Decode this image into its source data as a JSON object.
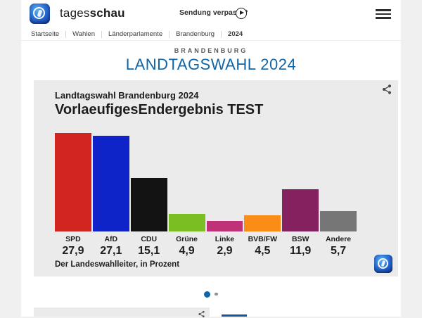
{
  "page": {
    "background": "#f0f0f0"
  },
  "header": {
    "brand": {
      "prefix": "tages",
      "suffix": "schau"
    },
    "broadcast_link": "Sendung verpasst?"
  },
  "breadcrumb": {
    "items": [
      "Startseite",
      "Wahlen",
      "Länderparlamente",
      "Brandenburg",
      "2024"
    ]
  },
  "hero": {
    "kicker": "BRANDENBURG",
    "title": "LANDTAGSWAHL 2024",
    "title_color": "#1065a8"
  },
  "chart_card": {
    "title": "Landtagswahl Brandenburg 2024",
    "subtitle": "VorlaeufigesEndergebnis TEST",
    "source": "Der Landeswahlleiter, in Prozent"
  },
  "chart_data": {
    "type": "bar",
    "title": "Landtagswahl Brandenburg 2024",
    "subtitle": "VorlaeufigesEndergebnis TEST",
    "source": "Der Landeswahlleiter, in Prozent",
    "unit": "Prozent",
    "categories": [
      "SPD",
      "AfD",
      "CDU",
      "Grüne",
      "Linke",
      "BVB/FW",
      "BSW",
      "Andere"
    ],
    "values": [
      27.9,
      27.1,
      15.1,
      4.9,
      2.9,
      4.5,
      11.9,
      5.7
    ],
    "value_labels": [
      "27,9",
      "27,1",
      "15,1",
      "4,9",
      "2,9",
      "4,5",
      "11,9",
      "5,7"
    ],
    "bar_colors": [
      "#d2251f",
      "#0e23c8",
      "#131313",
      "#7abe24",
      "#c03278",
      "#fa8d18",
      "#85215f",
      "#767676"
    ],
    "ylim": [
      0,
      27.9
    ],
    "grid": false,
    "legend": "none"
  },
  "carousel": {
    "dot_count": 2,
    "active_index": 0,
    "active_color": "#1065a8",
    "inactive_color": "#909090"
  }
}
